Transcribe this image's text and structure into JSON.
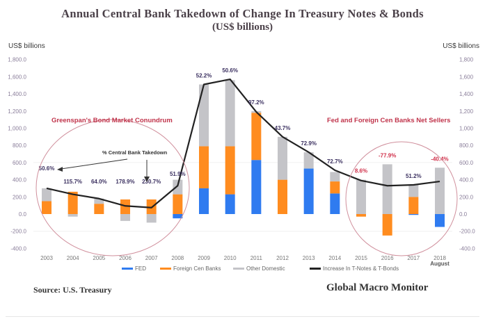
{
  "title": "Annual Central Bank Takedown of Change In Treasury Notes & Bonds",
  "subtitle": "(US$ billions)",
  "left_unit": "US$ billions",
  "right_unit": "US$ billions",
  "source": "Source:  U.S. Treasury",
  "brand": "Global Macro Monitor",
  "chart_data": {
    "type": "bar",
    "subtype": "stacked bar with line overlay",
    "title": "Annual Central Bank Takedown of Change In Treasury Notes & Bonds",
    "subtitle": "(US$ billions)",
    "ylabel": "US$ billions",
    "ylim": [
      -400,
      1800
    ],
    "yticks_left": [
      "1,800.0",
      "1,600.0",
      "1,400.0",
      "1,200.0",
      "1,000.0",
      "800.0",
      "600.0",
      "400.0",
      "200.0",
      "0.0",
      "-200.0",
      "-400.0"
    ],
    "yticks_right": [
      "1,800",
      "1,600",
      "1,400",
      "1,200",
      "1,000",
      "800.0",
      "600.0",
      "400.0",
      "200.0",
      "0.0",
      "-200.0",
      "-400.0"
    ],
    "ytick_values": [
      1800,
      1600,
      1400,
      1200,
      1000,
      800,
      600,
      400,
      200,
      0,
      -200,
      -400
    ],
    "categories": [
      "2003",
      "2004",
      "2005",
      "2006",
      "2007",
      "2008",
      "2009",
      "2010",
      "2011",
      "2012",
      "2013",
      "2014",
      "2015",
      "2016",
      "2017",
      "2018"
    ],
    "x_sublabel_last": "August",
    "series": [
      {
        "name": "FED",
        "color": "#2f7bf0",
        "values": [
          0,
          0,
          0,
          0,
          0,
          -50,
          300,
          230,
          630,
          0,
          530,
          240,
          0,
          0,
          -10,
          -150
        ]
      },
      {
        "name": "Foreign Cen Banks",
        "color": "#ff8c1f",
        "values": [
          150,
          260,
          120,
          170,
          170,
          230,
          490,
          560,
          550,
          400,
          0,
          140,
          -30,
          -250,
          200,
          0
        ]
      },
      {
        "name": "Other Domestic",
        "color": "#c4c4c8",
        "values": [
          150,
          -30,
          60,
          -80,
          -100,
          170,
          720,
          770,
          20,
          500,
          190,
          110,
          400,
          580,
          140,
          540
        ]
      },
      {
        "name": "Increase In T-Notes & T-Bonds",
        "type": "line",
        "color": "#222222",
        "values": [
          300,
          230,
          180,
          95,
          75,
          330,
          1510,
          1570,
          1190,
          900,
          720,
          510,
          390,
          330,
          340,
          380
        ]
      }
    ],
    "percent_labels": [
      {
        "category": "2003",
        "text": "50.6%",
        "color": "#3b3060"
      },
      {
        "category": "2004",
        "text": "115.7%",
        "color": "#3b3060"
      },
      {
        "category": "2005",
        "text": "64.0%",
        "color": "#3b3060"
      },
      {
        "category": "2006",
        "text": "178.9%",
        "color": "#3b3060"
      },
      {
        "category": "2007",
        "text": "230.7%",
        "color": "#3b3060"
      },
      {
        "category": "2008",
        "text": "51.9%",
        "color": "#3b3060"
      },
      {
        "category": "2009",
        "text": "52.2%",
        "color": "#3b3060"
      },
      {
        "category": "2010",
        "text": "50.6%",
        "color": "#3b3060"
      },
      {
        "category": "2011",
        "text": "97.2%",
        "color": "#3b3060"
      },
      {
        "category": "2012",
        "text": "43.7%",
        "color": "#3b3060"
      },
      {
        "category": "2013",
        "text": "72.9%",
        "color": "#3b3060"
      },
      {
        "category": "2014",
        "text": "72.7%",
        "color": "#3b3060"
      },
      {
        "category": "2015",
        "text": "8.6%",
        "color": "#d0304a"
      },
      {
        "category": "2016",
        "text": "-77.9%",
        "color": "#d0304a"
      },
      {
        "category": "2017",
        "text": "51.2%",
        "color": "#3b3060"
      },
      {
        "category": "2018",
        "text": "-40.4%",
        "color": "#d0304a"
      }
    ],
    "annotations": [
      {
        "text": "Greenspan's Bond Market Conundrum",
        "color": "#c0334a"
      },
      {
        "text": "% Central Bank Takedown",
        "color": "#333333"
      },
      {
        "text": "Fed and Foreign Cen Banks Net Sellers",
        "color": "#c0334a"
      }
    ],
    "grid": true,
    "legend_position": "bottom"
  }
}
